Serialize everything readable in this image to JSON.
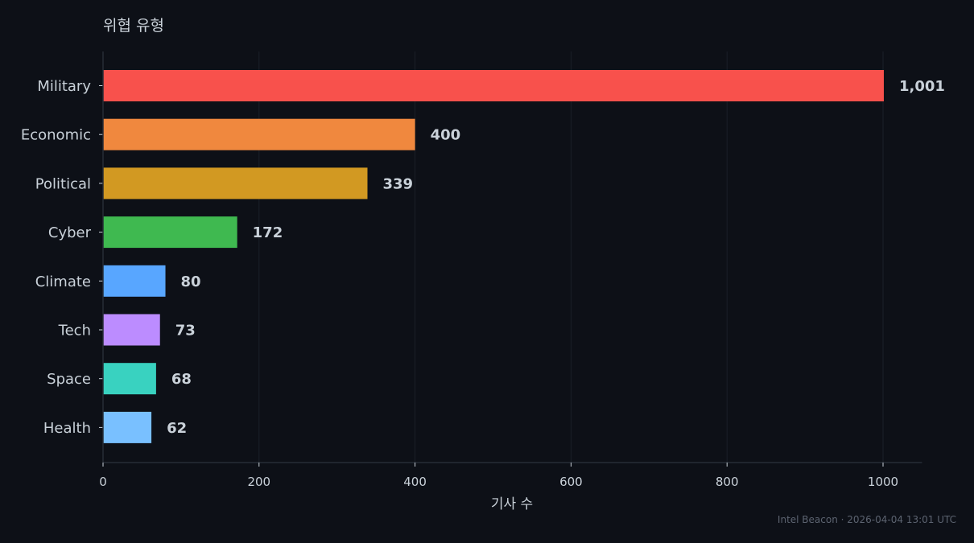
{
  "chart_data": {
    "type": "bar",
    "orientation": "horizontal",
    "title": "위협 유형",
    "xlabel": "기사 수",
    "ylabel": "",
    "xlim": [
      0,
      1050
    ],
    "xticks": [
      0,
      200,
      400,
      600,
      800,
      1000
    ],
    "grid": true,
    "categories": [
      "Military",
      "Economic",
      "Political",
      "Cyber",
      "Climate",
      "Tech",
      "Space",
      "Health"
    ],
    "values": [
      1001,
      400,
      339,
      172,
      80,
      73,
      68,
      62
    ],
    "value_labels": [
      "1,001",
      "400",
      "339",
      "172",
      "80",
      "73",
      "68",
      "62"
    ],
    "colors": [
      "#f8514c",
      "#f0883e",
      "#d29922",
      "#3fb950",
      "#58a6ff",
      "#bc8cff",
      "#39d2c0",
      "#79c0ff"
    ]
  },
  "footer": "Intel Beacon · 2026-04-04 13:01 UTC",
  "theme": {
    "background": "#0d1017",
    "text": "#c9d1d9",
    "grid": "#1b2029",
    "axis": "#262c36"
  }
}
